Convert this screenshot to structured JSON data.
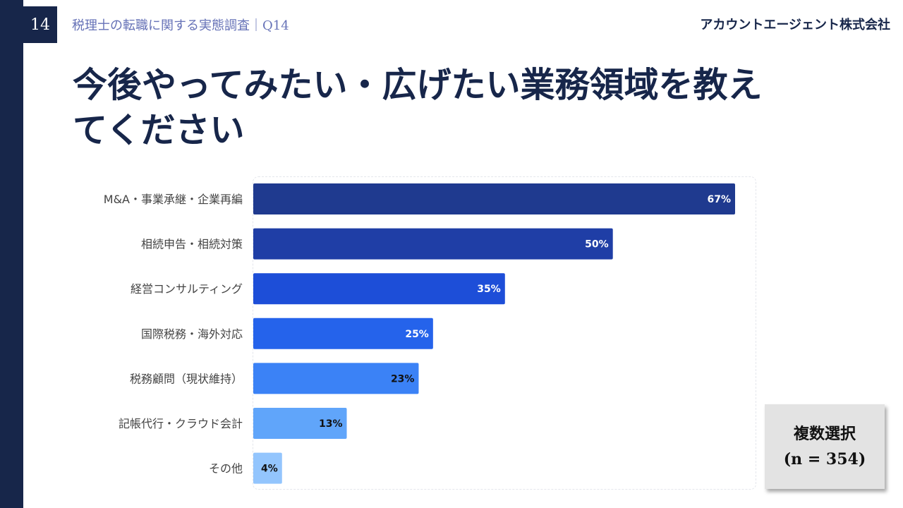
{
  "header": {
    "page_number": "14",
    "subtitle": "税理士の転職に関する実態調査｜Q14",
    "company": "アカウントエージェント株式会社"
  },
  "title_lines": [
    "今後やってみたい・広げたい業務領域を教え",
    "てください"
  ],
  "note": {
    "line1": "複数選択",
    "line2": "(n = 354)"
  },
  "chart_data": {
    "type": "bar",
    "orientation": "horizontal",
    "categories": [
      "M&A・事業承継・企業再編",
      "相続申告・相続対策",
      "経営コンサルティング",
      "国際税務・海外対応",
      "税務顧問（現状維持）",
      "記帳代行・クラウド会計",
      "その他"
    ],
    "values": [
      67,
      50,
      35,
      25,
      23,
      13,
      4
    ],
    "value_labels": [
      "67%",
      "50%",
      "35%",
      "25%",
      "23%",
      "13%",
      "4%"
    ],
    "colors": [
      "#1f3a8f",
      "#1f3ea6",
      "#1d4ed8",
      "#2563eb",
      "#3b82f6",
      "#60a5fa",
      "#93c5fd"
    ],
    "label_colors": [
      "#ffffff",
      "#ffffff",
      "#ffffff",
      "#ffffff",
      "#111111",
      "#111111",
      "#111111"
    ],
    "xlim": [
      0,
      70
    ],
    "grid": false,
    "legend": "none"
  }
}
